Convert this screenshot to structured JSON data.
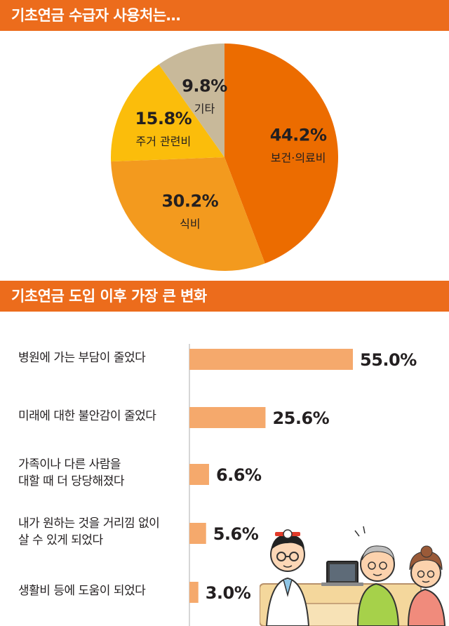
{
  "sections": {
    "pie_title": "기초연금 수급자 사용처는…",
    "bar_title": "기초연금 도입 이후 가장 큰 변화"
  },
  "colors": {
    "header": "#ec6c1c",
    "bar": "#f5a96c",
    "axis": "#c8c8c8"
  },
  "chart_data": [
    {
      "type": "pie",
      "slices": [
        {
          "label": "보건·의료비",
          "value": 44.2,
          "value_label": "44.2%",
          "color": "#ec6c00"
        },
        {
          "label": "식비",
          "value": 30.2,
          "value_label": "30.2%",
          "color": "#f39a1e"
        },
        {
          "label": "주거 관련비",
          "value": 15.8,
          "value_label": "15.8%",
          "color": "#fbbd0b"
        },
        {
          "label": "기타",
          "value": 9.8,
          "value_label": "9.8%",
          "color": "#c8b99a"
        }
      ]
    },
    {
      "type": "bar",
      "orientation": "horizontal",
      "categories": [
        [
          "병원에 가는 부담이 줄었다"
        ],
        [
          "미래에 대한 불안감이 줄었다"
        ],
        [
          "가족이나 다른 사람을",
          "대할 때 더 당당해졌다"
        ],
        [
          "내가 원하는 것을 거리낌 없이",
          "살 수 있게 되었다"
        ],
        [
          "생활비 등에 도움이 되었다"
        ]
      ],
      "values": [
        55.0,
        25.6,
        6.6,
        5.6,
        3.0
      ],
      "value_labels": [
        "55.0%",
        "25.6%",
        "6.6%",
        "5.6%",
        "3.0%"
      ]
    }
  ],
  "illustration": {
    "figures": [
      "doctor-figure",
      "elderly-man-figure",
      "elderly-woman-figure",
      "laptop"
    ]
  }
}
